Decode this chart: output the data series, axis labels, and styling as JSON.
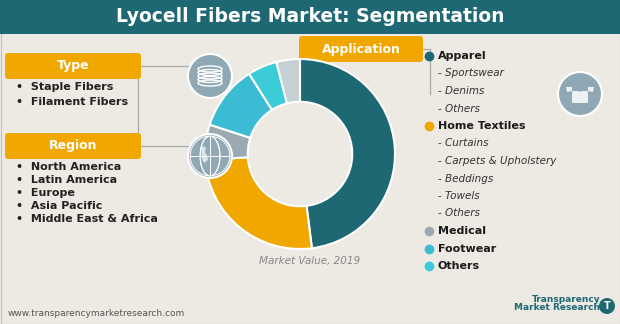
{
  "title": "Lyocell Fibers Market: Segmentation",
  "title_bg": "#1e6874",
  "title_color": "#ffffff",
  "bg_color": "#ede9e3",
  "section_bg": "#f0a800",
  "type_label": "Type",
  "type_items": [
    "Staple Fibers",
    "Filament Fibers"
  ],
  "region_label": "Region",
  "region_items": [
    "North America",
    "Latin America",
    "Europe",
    "Asia Pacific",
    "Middle East & Africa"
  ],
  "application_label": "Application",
  "donut_values": [
    48,
    26,
    6,
    11,
    5,
    4
  ],
  "donut_colors": [
    "#1e6874",
    "#f0a800",
    "#9baab2",
    "#3bbcd4",
    "#3bccd8",
    "#c5d0d5"
  ],
  "legend_entries": [
    {
      "label": "Apparel",
      "color": "#1e6874",
      "bold": true,
      "sub": false
    },
    {
      "label": "- Sportswear",
      "color": "#444444",
      "bold": false,
      "sub": true
    },
    {
      "label": "- Denims",
      "color": "#444444",
      "bold": false,
      "sub": true
    },
    {
      "label": "- Others",
      "color": "#444444",
      "bold": false,
      "sub": true
    },
    {
      "label": "Home Textiles",
      "color": "#f0a800",
      "bold": true,
      "sub": false
    },
    {
      "label": "- Curtains",
      "color": "#444444",
      "bold": false,
      "sub": true
    },
    {
      "label": "- Carpets & Upholstery",
      "color": "#444444",
      "bold": false,
      "sub": true
    },
    {
      "label": "- Beddings",
      "color": "#444444",
      "bold": false,
      "sub": true
    },
    {
      "label": "- Towels",
      "color": "#444444",
      "bold": false,
      "sub": true
    },
    {
      "label": "- Others",
      "color": "#444444",
      "bold": false,
      "sub": true
    },
    {
      "label": "Medical",
      "color": "#9baab2",
      "bold": true,
      "sub": false
    },
    {
      "label": "Footwear",
      "color": "#3bbcd4",
      "bold": true,
      "sub": false
    },
    {
      "label": "Others",
      "color": "#3bccd8",
      "bold": true,
      "sub": false
    }
  ],
  "market_value_label": "Market Value, 2019",
  "footer_url": "www.transparencymarketresearch.com",
  "icon_color": "#8fa8b4",
  "icon_border": "#ffffff",
  "line_color": "#aaaaaa"
}
